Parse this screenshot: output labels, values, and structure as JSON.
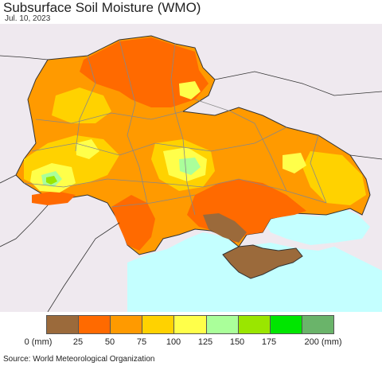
{
  "header": {
    "title": "Subsurface Soil Moisture (WMO)",
    "date": "Jul. 10, 2023"
  },
  "legend": {
    "colors": [
      "#9b6a3b",
      "#ff6a00",
      "#ff9a00",
      "#ffd200",
      "#ffff4a",
      "#aaff9a",
      "#9ae600",
      "#00e600",
      "#6ab46a"
    ],
    "ticks": [
      "0 (mm)",
      "25",
      "50",
      "75",
      "100",
      "125",
      "150",
      "175",
      "200 (mm)"
    ]
  },
  "map_colors": {
    "sea": "#c4ffff",
    "neighbor": "#efe9ef",
    "border": "#333333",
    "admin": "#888888"
  },
  "footer": {
    "source": "Source: World Meteorological Organization"
  }
}
